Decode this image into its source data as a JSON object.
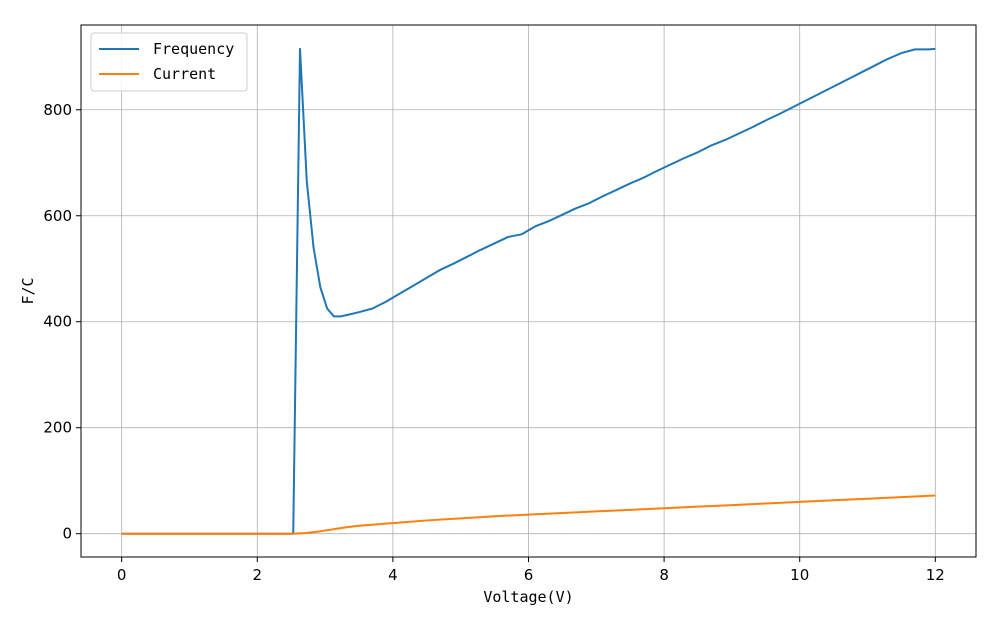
{
  "chart_data": {
    "type": "line",
    "xlabel": "Voltage(V)",
    "ylabel": "F/C",
    "xlim": [
      -0.6,
      12.6
    ],
    "ylim": [
      -44,
      960
    ],
    "xticks": [
      0,
      2,
      4,
      6,
      8,
      10,
      12
    ],
    "yticks": [
      0,
      200,
      400,
      600,
      800
    ],
    "grid": true,
    "legend_position": "top-left",
    "series": [
      {
        "name": "Frequency",
        "color": "#1f77b4",
        "x": [
          0,
          0.5,
          1,
          1.5,
          2,
          2.5,
          2.53,
          2.63,
          2.73,
          2.83,
          2.93,
          3.03,
          3.13,
          3.23,
          3.33,
          3.5,
          3.7,
          3.9,
          4.1,
          4.3,
          4.5,
          4.7,
          4.9,
          5.1,
          5.3,
          5.5,
          5.7,
          5.9,
          6.1,
          6.3,
          6.5,
          6.7,
          6.9,
          7.1,
          7.3,
          7.5,
          7.7,
          7.9,
          8.1,
          8.3,
          8.5,
          8.7,
          8.9,
          9.1,
          9.3,
          9.5,
          9.7,
          9.9,
          10.1,
          10.3,
          10.5,
          10.7,
          10.9,
          11.1,
          11.3,
          11.5,
          11.7,
          11.9,
          12
        ],
        "y": [
          0,
          0,
          0,
          0,
          0,
          0,
          0,
          915,
          665,
          540,
          465,
          425,
          410,
          410,
          413,
          418,
          425,
          438,
          453,
          468,
          483,
          498,
          510,
          523,
          536,
          548,
          560,
          565,
          580,
          590,
          602,
          614,
          624,
          637,
          649,
          661,
          672,
          685,
          697,
          709,
          720,
          733,
          743,
          755,
          767,
          780,
          792,
          805,
          818,
          831,
          844,
          857,
          870,
          883,
          896,
          907,
          914,
          914,
          915
        ]
      },
      {
        "name": "Current",
        "color": "#ff7f0e",
        "x": [
          0,
          0.5,
          1,
          1.5,
          2,
          2.5,
          2.7,
          2.9,
          3.1,
          3.3,
          3.5,
          4,
          4.5,
          5,
          5.5,
          6,
          6.5,
          7,
          7.5,
          8,
          8.5,
          9,
          9.5,
          10,
          10.5,
          11,
          11.5,
          12
        ],
        "y": [
          0,
          0,
          0,
          0,
          0,
          0,
          1,
          4,
          8,
          12,
          15,
          20,
          25,
          29,
          33,
          36,
          39,
          42,
          45,
          48,
          51,
          54,
          57,
          60,
          63,
          66,
          69,
          72
        ]
      }
    ]
  }
}
